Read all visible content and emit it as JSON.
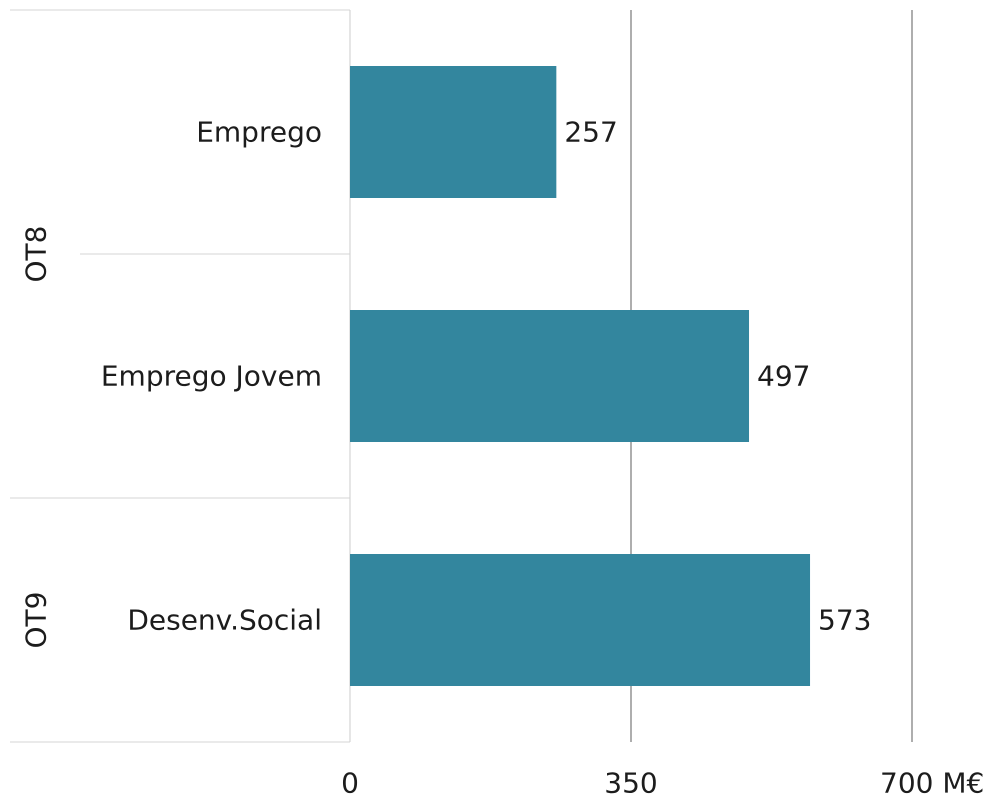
{
  "chart_data": {
    "type": "bar",
    "orientation": "horizontal",
    "categories": [
      "Emprego",
      "Emprego Jovem",
      "Desenv.Social"
    ],
    "values": [
      257,
      497,
      573
    ],
    "category_groups": [
      "OT8",
      "OT8",
      "OT9"
    ],
    "xlim": [
      0,
      700
    ],
    "x_ticks": [
      0,
      350,
      700
    ],
    "x_tick_labels": [
      "0",
      "350",
      "700 M€"
    ],
    "grid": true,
    "bar_color": "#33869e"
  }
}
